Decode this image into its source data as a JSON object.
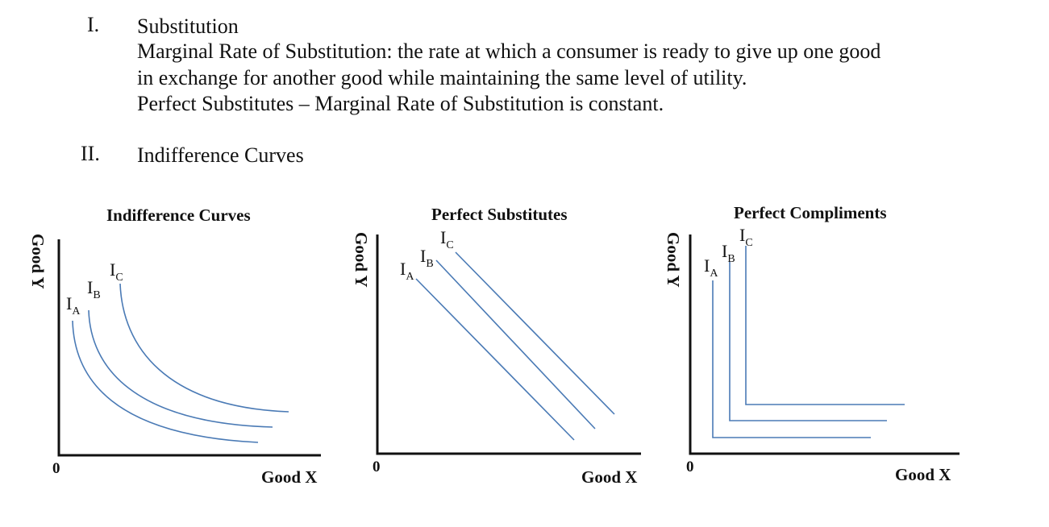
{
  "sections": [
    {
      "number": "I.",
      "lines": [
        "Substitution",
        "Marginal Rate of Substitution: the rate at which a consumer is ready to give up one good",
        "in exchange for another good while maintaining the same level of utility.",
        "Perfect Substitutes – Marginal Rate of Substitution is constant."
      ]
    },
    {
      "number": "II.",
      "lines": [
        "Indifference Curves"
      ]
    }
  ],
  "charts": [
    {
      "title": "Indifference Curves",
      "xlabel": "Good X",
      "ylabel": "Good Y",
      "origin": "0",
      "curves": [
        {
          "letter": "I",
          "sub": "A"
        },
        {
          "letter": "I",
          "sub": "B"
        },
        {
          "letter": "I",
          "sub": "C"
        }
      ]
    },
    {
      "title": "Perfect Substitutes",
      "xlabel": "Good X",
      "ylabel": "Good Y",
      "origin": "0",
      "curves": [
        {
          "letter": "I",
          "sub": "A"
        },
        {
          "letter": "I",
          "sub": "B"
        },
        {
          "letter": "I",
          "sub": "C"
        }
      ]
    },
    {
      "title": "Perfect Compliments",
      "xlabel": "Good X",
      "ylabel": "Good Y",
      "origin": "0",
      "curves": [
        {
          "letter": "I",
          "sub": "A"
        },
        {
          "letter": "I",
          "sub": "B"
        },
        {
          "letter": "I",
          "sub": "C"
        }
      ]
    }
  ],
  "colors": {
    "curve": "#4a7ab5",
    "axis": "#111111"
  }
}
